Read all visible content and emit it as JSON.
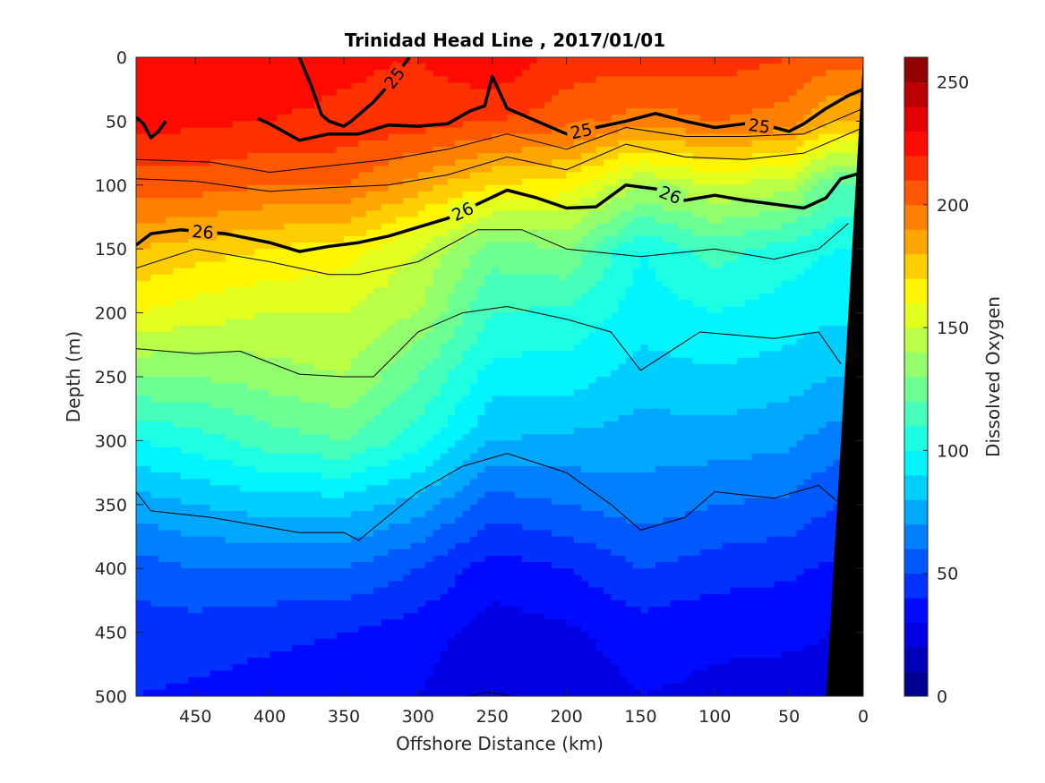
{
  "chart_data": {
    "type": "heatmap",
    "title": "Trinidad Head Line , 2017/01/01",
    "xlabel": "Offshore Distance (km)",
    "ylabel": "Depth (m)",
    "xlim": [
      490,
      0
    ],
    "ylim": [
      0,
      500
    ],
    "x_reversed": true,
    "y_reversed": true,
    "xticks": [
      450,
      400,
      350,
      300,
      250,
      200,
      150,
      100,
      50,
      0
    ],
    "yticks": [
      0,
      50,
      100,
      150,
      200,
      250,
      300,
      350,
      400,
      450,
      500
    ],
    "colorbar": {
      "label": "Dissolved Oxygen",
      "range": [
        0,
        260
      ],
      "ticks": [
        0,
        50,
        100,
        150,
        200,
        250
      ],
      "step": 10
    },
    "oxygen_profiles": {
      "depths": [
        0,
        50,
        100,
        150,
        200,
        250,
        300,
        350,
        400,
        450,
        500
      ],
      "stations": [
        {
          "x": 490,
          "values": [
            230,
            225,
            205,
            180,
            160,
            130,
            100,
            75,
            55,
            45,
            40
          ]
        },
        {
          "x": 450,
          "values": [
            230,
            222,
            205,
            175,
            155,
            130,
            105,
            80,
            60,
            45,
            38
          ]
        },
        {
          "x": 400,
          "values": [
            225,
            220,
            200,
            170,
            150,
            135,
            115,
            85,
            60,
            42,
            36
          ]
        },
        {
          "x": 350,
          "values": [
            222,
            218,
            200,
            165,
            150,
            140,
            120,
            85,
            60,
            40,
            34
          ]
        },
        {
          "x": 300,
          "values": [
            220,
            215,
            185,
            150,
            140,
            120,
            105,
            75,
            50,
            35,
            30
          ]
        },
        {
          "x": 250,
          "values": [
            230,
            210,
            170,
            125,
            110,
            95,
            80,
            55,
            35,
            25,
            20
          ]
        },
        {
          "x": 200,
          "values": [
            215,
            205,
            165,
            130,
            108,
            95,
            78,
            60,
            40,
            28,
            24
          ]
        },
        {
          "x": 150,
          "values": [
            215,
            195,
            140,
            100,
            95,
            85,
            75,
            65,
            50,
            35,
            30
          ]
        },
        {
          "x": 100,
          "values": [
            215,
            200,
            150,
            115,
            100,
            88,
            75,
            60,
            45,
            32,
            28
          ]
        },
        {
          "x": 50,
          "values": [
            210,
            195,
            145,
            105,
            95,
            85,
            72,
            58,
            42,
            32,
            26
          ]
        },
        {
          "x": 20,
          "values": [
            205,
            180,
            120,
            100,
            92,
            80,
            65,
            50,
            38,
            30,
            25
          ]
        }
      ]
    },
    "isopycnals": [
      {
        "label": "25",
        "bold": true,
        "points": [
          [
            490,
            47
          ],
          [
            485,
            52
          ],
          [
            480,
            63
          ],
          [
            475,
            58
          ],
          [
            470,
            50
          ]
        ]
      },
      {
        "label": "25",
        "bold": true,
        "points": [
          [
            380,
            0
          ],
          [
            372,
            22
          ],
          [
            365,
            45
          ],
          [
            360,
            50
          ],
          [
            355,
            52
          ],
          [
            350,
            54
          ],
          [
            345,
            50
          ],
          [
            330,
            35
          ],
          [
            320,
            22
          ],
          [
            312,
            10
          ],
          [
            306,
            0
          ]
        ]
      },
      {
        "label": "25",
        "bold": true,
        "points": [
          [
            408,
            48
          ],
          [
            400,
            52
          ],
          [
            380,
            65
          ],
          [
            360,
            60
          ],
          [
            340,
            60
          ],
          [
            320,
            53
          ],
          [
            300,
            54
          ],
          [
            280,
            52
          ],
          [
            265,
            42
          ],
          [
            255,
            38
          ],
          [
            250,
            15
          ],
          [
            240,
            40
          ],
          [
            220,
            50
          ],
          [
            200,
            60
          ],
          [
            180,
            55
          ],
          [
            160,
            50
          ],
          [
            140,
            44
          ],
          [
            120,
            50
          ],
          [
            100,
            55
          ],
          [
            80,
            52
          ],
          [
            60,
            55
          ],
          [
            50,
            58
          ],
          [
            40,
            52
          ],
          [
            25,
            40
          ],
          [
            10,
            30
          ],
          [
            0,
            25
          ]
        ]
      },
      {
        "label": "26",
        "bold": true,
        "points": [
          [
            490,
            147
          ],
          [
            480,
            138
          ],
          [
            460,
            135
          ],
          [
            430,
            138
          ],
          [
            400,
            145
          ],
          [
            380,
            152
          ],
          [
            360,
            148
          ],
          [
            340,
            145
          ],
          [
            320,
            140
          ],
          [
            300,
            133
          ],
          [
            280,
            126
          ],
          [
            260,
            115
          ],
          [
            240,
            104
          ],
          [
            220,
            110
          ],
          [
            200,
            118
          ],
          [
            180,
            117
          ],
          [
            160,
            100
          ],
          [
            140,
            103
          ],
          [
            120,
            112
          ],
          [
            100,
            108
          ],
          [
            80,
            112
          ],
          [
            60,
            115
          ],
          [
            40,
            118
          ],
          [
            25,
            110
          ],
          [
            15,
            95
          ],
          [
            0,
            90
          ]
        ]
      },
      {
        "label": "",
        "bold": false,
        "points": [
          [
            490,
            80
          ],
          [
            440,
            82
          ],
          [
            400,
            90
          ],
          [
            360,
            85
          ],
          [
            320,
            80
          ],
          [
            280,
            72
          ],
          [
            240,
            60
          ],
          [
            200,
            72
          ],
          [
            160,
            55
          ],
          [
            120,
            62
          ],
          [
            80,
            62
          ],
          [
            40,
            60
          ],
          [
            0,
            40
          ]
        ]
      },
      {
        "label": "",
        "bold": false,
        "points": [
          [
            490,
            95
          ],
          [
            450,
            97
          ],
          [
            400,
            105
          ],
          [
            360,
            102
          ],
          [
            320,
            100
          ],
          [
            280,
            92
          ],
          [
            240,
            78
          ],
          [
            200,
            88
          ],
          [
            160,
            68
          ],
          [
            120,
            78
          ],
          [
            80,
            80
          ],
          [
            40,
            75
          ],
          [
            0,
            55
          ]
        ]
      },
      {
        "label": "",
        "bold": false,
        "points": [
          [
            490,
            165
          ],
          [
            450,
            150
          ],
          [
            400,
            160
          ],
          [
            360,
            170
          ],
          [
            340,
            170
          ],
          [
            300,
            160
          ],
          [
            260,
            135
          ],
          [
            230,
            135
          ],
          [
            200,
            150
          ],
          [
            150,
            156
          ],
          [
            100,
            150
          ],
          [
            60,
            158
          ],
          [
            30,
            150
          ],
          [
            10,
            130
          ]
        ]
      },
      {
        "label": "",
        "bold": false,
        "points": [
          [
            490,
            228
          ],
          [
            450,
            232
          ],
          [
            420,
            230
          ],
          [
            380,
            248
          ],
          [
            350,
            250
          ],
          [
            330,
            250
          ],
          [
            300,
            215
          ],
          [
            270,
            200
          ],
          [
            240,
            195
          ],
          [
            200,
            205
          ],
          [
            170,
            215
          ],
          [
            150,
            245
          ],
          [
            110,
            215
          ],
          [
            60,
            220
          ],
          [
            30,
            215
          ],
          [
            15,
            240
          ]
        ]
      },
      {
        "label": "",
        "bold": false,
        "points": [
          [
            490,
            340
          ],
          [
            480,
            355
          ],
          [
            440,
            360
          ],
          [
            400,
            368
          ],
          [
            380,
            372
          ],
          [
            350,
            372
          ],
          [
            340,
            378
          ],
          [
            300,
            340
          ],
          [
            270,
            320
          ],
          [
            240,
            310
          ],
          [
            200,
            325
          ],
          [
            170,
            350
          ],
          [
            150,
            370
          ],
          [
            120,
            360
          ],
          [
            100,
            340
          ],
          [
            60,
            345
          ],
          [
            30,
            335
          ],
          [
            10,
            355
          ]
        ]
      },
      {
        "label": "",
        "bold": false,
        "points": [
          [
            265,
            500
          ],
          [
            255,
            497
          ],
          [
            245,
            498
          ],
          [
            238,
            500
          ]
        ]
      }
    ],
    "bathymetry": {
      "label": "",
      "points": [
        [
          0,
          0
        ],
        [
          25,
          500
        ],
        [
          0,
          500
        ]
      ]
    },
    "colors": {
      "background": "#ffffff",
      "axes": "#262626",
      "land": "#000000"
    }
  }
}
